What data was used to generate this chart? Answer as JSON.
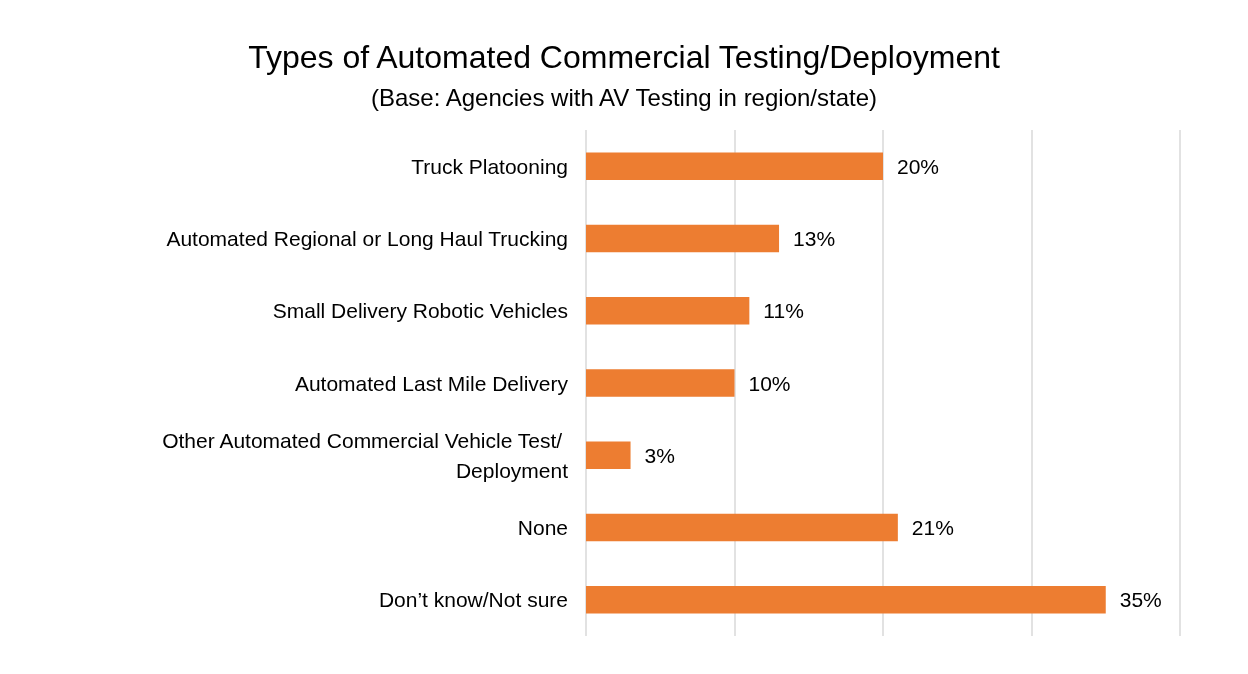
{
  "chart_data": {
    "type": "bar",
    "orientation": "horizontal",
    "title": "Types of Automated Commercial Testing/Deployment",
    "subtitle": "(Base: Agencies with AV Testing in region/state)",
    "categories": [
      "Truck Platooning",
      "Automated Regional or Long Haul Trucking",
      "Small Delivery Robotic Vehicles",
      "Automated Last Mile Delivery",
      "Other Automated Commercial Vehicle Test/ Deployment",
      "None",
      "Don’t know/Not sure"
    ],
    "values": [
      20,
      13,
      11,
      10,
      3,
      21,
      35
    ],
    "value_labels": [
      "20%",
      "13%",
      "11%",
      "10%",
      "3%",
      "21%",
      "35%"
    ],
    "color": "#ed7d31",
    "xlim": [
      0,
      40
    ],
    "xticks": [
      {
        "value": 0,
        "label": null
      },
      {
        "value": 10,
        "label": null
      },
      {
        "value": 20,
        "label": null
      },
      {
        "value": 30,
        "label": null
      },
      {
        "value": 40,
        "label": null
      }
    ],
    "grid": "x",
    "tick_labels": "y"
  }
}
